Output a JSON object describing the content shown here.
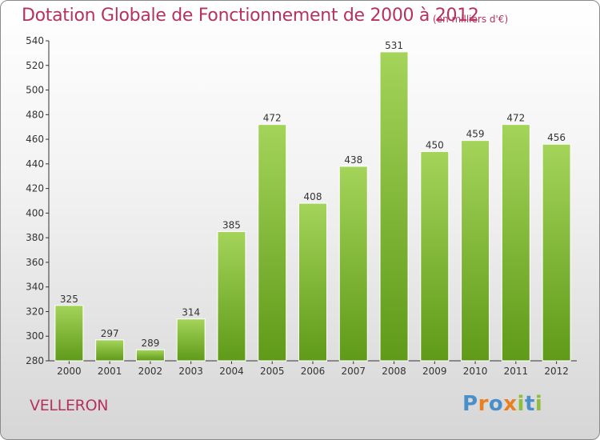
{
  "header": {
    "title": "Dotation Globale de Fonctionnement de 2000 à 2012",
    "unit": "(en milliers d'€)"
  },
  "commune": "VELLERON",
  "logo": {
    "text": "Proxiti",
    "letters": [
      "P",
      "r",
      "o",
      "x",
      "i",
      "t",
      "i"
    ],
    "colors": [
      "#4a8fc9",
      "#e8801f",
      "#4a8fc9",
      "#e8801f",
      "#8dbf3a",
      "#4a8fc9",
      "#8dbf3a"
    ]
  },
  "colors": {
    "bar_top": "#a4d45a",
    "bar_bottom": "#5f9a18",
    "bar_edge": "#ffffff",
    "text": "#333333",
    "accent": "#b5325f"
  },
  "chart_data": {
    "type": "bar",
    "title": "Dotation Globale de Fonctionnement de 2000 à 2012",
    "subtitle": "(en milliers d'€)",
    "categories": [
      "2000",
      "2001",
      "2002",
      "2003",
      "2004",
      "2005",
      "2006",
      "2007",
      "2008",
      "2009",
      "2010",
      "2011",
      "2012"
    ],
    "values": [
      325,
      297,
      289,
      314,
      385,
      472,
      408,
      438,
      531,
      450,
      459,
      472,
      456
    ],
    "xlabel": "",
    "ylabel": "",
    "ylim": [
      280,
      540
    ],
    "yticks": [
      280,
      300,
      320,
      340,
      360,
      380,
      400,
      420,
      440,
      460,
      480,
      500,
      520,
      540
    ],
    "grid": false,
    "legend": "none"
  }
}
